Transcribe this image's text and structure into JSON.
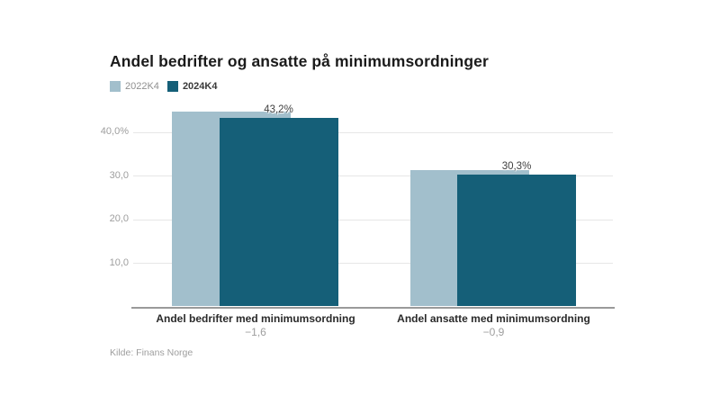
{
  "title": "Andel bedrifter og ansatte på minimumsordninger",
  "source": "Kilde: Finans Norge",
  "legend": [
    {
      "label": "2022K4",
      "color": "#a2bfcc",
      "emphasized": false
    },
    {
      "label": "2024K4",
      "color": "#155f78",
      "emphasized": true
    }
  ],
  "colors": {
    "series_2022": "#a2bfcc",
    "series_2024": "#155f78",
    "gridline": "#e7e7e7",
    "axis_line": "#9a9a9a",
    "muted_text": "#9e9e9e",
    "dark_text": "#2a2a2a"
  },
  "chart_data": {
    "type": "bar",
    "title": "Andel bedrifter og ansatte på minimumsordninger",
    "categories": [
      "Andel bedrifter med minimumsordning",
      "Andel ansatte med minimumsordning"
    ],
    "category_sublabels": [
      "−1,6",
      "−0,9"
    ],
    "series": [
      {
        "name": "2022K4",
        "color": "#a2bfcc",
        "values": [
          44.8,
          31.2
        ]
      },
      {
        "name": "2024K4",
        "color": "#155f78",
        "values": [
          43.2,
          30.3
        ]
      }
    ],
    "value_labels": [
      "43,2%",
      "30,3%"
    ],
    "y_ticks": [
      {
        "value": 40,
        "label": "40,0%"
      },
      {
        "value": 30,
        "label": "30,0"
      },
      {
        "value": 20,
        "label": "20,0"
      },
      {
        "value": 10,
        "label": "10,0"
      }
    ],
    "ylim": [
      0,
      45.5
    ],
    "grid": true,
    "legend_position": "top-left",
    "bar_style": "overlapped"
  }
}
